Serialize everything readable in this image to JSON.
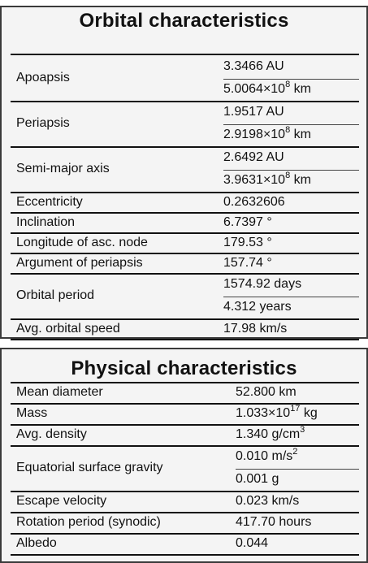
{
  "orbital": {
    "title": "Orbital characteristics",
    "rows": [
      {
        "label": "Apoapsis",
        "values": [
          {
            "text": "3.3466 AU"
          },
          {
            "base": "5.0064×10",
            "exp": "8",
            "unit": " km"
          }
        ]
      },
      {
        "label": "Periapsis",
        "values": [
          {
            "text": "1.9517 AU"
          },
          {
            "base": "2.9198×10",
            "exp": "8",
            "unit": " km"
          }
        ]
      },
      {
        "label": "Semi-major axis",
        "values": [
          {
            "text": "2.6492 AU"
          },
          {
            "base": "3.9631×10",
            "exp": "8",
            "unit": " km"
          }
        ]
      },
      {
        "label": "Eccentricity",
        "values": [
          {
            "text": "0.2632606"
          }
        ]
      },
      {
        "label": "Inclination",
        "values": [
          {
            "text": "6.7397 °"
          }
        ]
      },
      {
        "label": "Longitude of asc. node",
        "values": [
          {
            "text": "179.53 °"
          }
        ]
      },
      {
        "label": "Argument of periapsis",
        "values": [
          {
            "text": "157.74 °"
          }
        ]
      },
      {
        "label": "Orbital period",
        "values": [
          {
            "text": "1574.92 days"
          },
          {
            "text": "4.312 years"
          }
        ]
      },
      {
        "label": "Avg. orbital speed",
        "values": [
          {
            "text": "17.98 km/s"
          }
        ]
      }
    ]
  },
  "physical": {
    "title": "Physical characteristics",
    "rows": [
      {
        "label": "Mean diameter",
        "values": [
          {
            "text": "52.800 km"
          }
        ]
      },
      {
        "label": "Mass",
        "values": [
          {
            "base": "1.033×10",
            "exp": "17",
            "unit": " kg"
          }
        ]
      },
      {
        "label": "Avg. density",
        "values": [
          {
            "base": "1.340 g/cm",
            "exp": "3",
            "unit": ""
          }
        ]
      },
      {
        "label": "Equatorial surface gravity",
        "values": [
          {
            "base": "0.010 m/s",
            "exp": "2",
            "unit": ""
          },
          {
            "text": "0.001 g"
          }
        ]
      },
      {
        "label": "Escape velocity",
        "values": [
          {
            "text": "0.023 km/s"
          }
        ]
      },
      {
        "label": "Rotation period (synodic)",
        "values": [
          {
            "text": "417.70 hours"
          }
        ]
      },
      {
        "label": "Albedo",
        "values": [
          {
            "text": "0.044"
          }
        ]
      }
    ]
  }
}
